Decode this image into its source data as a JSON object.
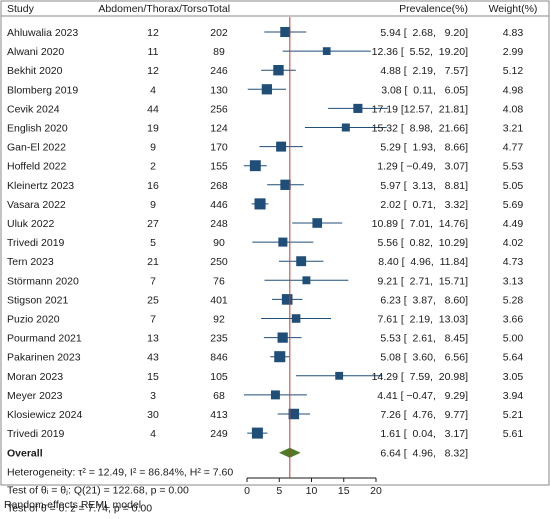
{
  "chart_data": {
    "type": "forest",
    "headers": {
      "study": "Study",
      "events": "Abdomen/Thorax/Torso",
      "total": "Total",
      "effect": "Prevalence(%)",
      "weight": "Weight(%)"
    },
    "studies": [
      {
        "study": "Ahluwalia 2023",
        "events": "12",
        "total": "202",
        "estimate": 5.94,
        "lower": 2.68,
        "upper": 9.2,
        "ci_text": "5.94 [  2.68,   9.20]",
        "weight": "4.83"
      },
      {
        "study": "Alwani 2020",
        "events": "11",
        "total": "89",
        "estimate": 12.36,
        "lower": 5.52,
        "upper": 19.2,
        "ci_text": "12.36 [  5.52,  19.20]",
        "weight": "2.99"
      },
      {
        "study": "Bekhit  2020",
        "events": "12",
        "total": "246",
        "estimate": 4.88,
        "lower": 2.19,
        "upper": 7.57,
        "ci_text": "4.88 [  2.19,   7.57]",
        "weight": "5.12"
      },
      {
        "study": "Blomberg 2019",
        "events": "4",
        "total": "130",
        "estimate": 3.08,
        "lower": 0.11,
        "upper": 6.05,
        "ci_text": "3.08 [  0.11,   6.05]",
        "weight": "4.98"
      },
      {
        "study": "Cevik 2024",
        "events": "44",
        "total": "256",
        "estimate": 17.19,
        "lower": 12.57,
        "upper": 21.81,
        "ci_text": "17.19 [12.57,  21.81]",
        "weight": "4.08"
      },
      {
        "study": "English  2020",
        "events": "19",
        "total": "124",
        "estimate": 15.32,
        "lower": 8.98,
        "upper": 21.66,
        "ci_text": "15.32 [  8.98,  21.66]",
        "weight": "3.21"
      },
      {
        "study": "Gan-El 2022",
        "events": "9",
        "total": "170",
        "estimate": 5.29,
        "lower": 1.93,
        "upper": 8.66,
        "ci_text": "5.29 [  1.93,   8.66]",
        "weight": "4.77"
      },
      {
        "study": "Hoffeld 2022",
        "events": "2",
        "total": "155",
        "estimate": 1.29,
        "lower": -0.49,
        "upper": 3.07,
        "ci_text": "1.29 [ −0.49,   3.07]",
        "weight": "5.53"
      },
      {
        "study": "Kleinertz 2023",
        "events": "16",
        "total": "268",
        "estimate": 5.97,
        "lower": 3.13,
        "upper": 8.81,
        "ci_text": "5.97 [  3.13,   8.81]",
        "weight": "5.05"
      },
      {
        "study": "Vasara 2022",
        "events": "9",
        "total": "446",
        "estimate": 2.02,
        "lower": 0.71,
        "upper": 3.32,
        "ci_text": "2.02 [  0.71,   3.32]",
        "weight": "5.69"
      },
      {
        "study": "Uluk 2022",
        "events": "27",
        "total": "248",
        "estimate": 10.89,
        "lower": 7.01,
        "upper": 14.76,
        "ci_text": "10.89 [  7.01,  14.76]",
        "weight": "4.49"
      },
      {
        "study": "Trivedi 2019",
        "events": "5",
        "total": "90",
        "estimate": 5.56,
        "lower": 0.82,
        "upper": 10.29,
        "ci_text": "5.56 [  0.82,  10.29]",
        "weight": "4.02"
      },
      {
        "study": "Tern 2023",
        "events": "21",
        "total": "250",
        "estimate": 8.4,
        "lower": 4.96,
        "upper": 11.84,
        "ci_text": "8.40 [  4.96,  11.84]",
        "weight": "4.73"
      },
      {
        "study": "Störmann 2020",
        "events": "7",
        "total": "76",
        "estimate": 9.21,
        "lower": 2.71,
        "upper": 15.71,
        "ci_text": "9.21 [  2.71,  15.71]",
        "weight": "3.13"
      },
      {
        "study": "Stigson 2021",
        "events": "25",
        "total": "401",
        "estimate": 6.23,
        "lower": 3.87,
        "upper": 8.6,
        "ci_text": "6.23 [  3.87,   8.60]",
        "weight": "5.28"
      },
      {
        "study": "Puzio 2020",
        "events": "7",
        "total": "92",
        "estimate": 7.61,
        "lower": 2.19,
        "upper": 13.03,
        "ci_text": "7.61 [  2.19,  13.03]",
        "weight": "3.66"
      },
      {
        "study": "Pourmand 2021",
        "events": "13",
        "total": "235",
        "estimate": 5.53,
        "lower": 2.61,
        "upper": 8.45,
        "ci_text": "5.53 [  2.61,   8.45]",
        "weight": "5.00"
      },
      {
        "study": "Pakarinen 2023",
        "events": "43",
        "total": "846",
        "estimate": 5.08,
        "lower": 3.6,
        "upper": 6.56,
        "ci_text": "5.08 [  3.60,   6.56]",
        "weight": "5.64"
      },
      {
        "study": "Moran 2023",
        "events": "15",
        "total": "105",
        "estimate": 14.29,
        "lower": 7.59,
        "upper": 20.98,
        "ci_text": "14.29 [  7.59,  20.98]",
        "weight": "3.05"
      },
      {
        "study": "Meyer 2023",
        "events": "3",
        "total": "68",
        "estimate": 4.41,
        "lower": -0.47,
        "upper": 9.29,
        "ci_text": "4.41 [ −0.47,   9.29]",
        "weight": "3.94"
      },
      {
        "study": "Klosiewicz 2024",
        "events": "30",
        "total": "413",
        "estimate": 7.26,
        "lower": 4.76,
        "upper": 9.77,
        "ci_text": "7.26 [  4.76,   9.77]",
        "weight": "5.21"
      },
      {
        "study": "Trivedi 2019",
        "events": "4",
        "total": "249",
        "estimate": 1.61,
        "lower": 0.04,
        "upper": 3.17,
        "ci_text": "1.61 [  0.04,   3.17]",
        "weight": "5.61"
      }
    ],
    "overall": {
      "label": "Overall",
      "estimate": 6.64,
      "lower": 4.96,
      "upper": 8.32,
      "ci_text": "6.64 [  4.96,   8.32]"
    },
    "stats": [
      "Heterogeneity: τ² = 12.49, I² = 86.84%, H² = 7.60",
      "Test of θᵢ = θⱼ: Q(21) = 122.68, p = 0.00",
      "Test of θ = 0: z = 7.74, p = 0.00"
    ],
    "xticks": [
      0,
      5,
      10,
      15,
      20
    ],
    "xlim": [
      -2,
      21
    ],
    "reference_line": 6.64,
    "footnote": "Random-effects REML model",
    "colors": {
      "marker": "#1f4e79",
      "ci_line": "#1f4e79",
      "diamond": "#4f7a28",
      "reference_line": "#c0392b",
      "border": "#888888"
    }
  }
}
